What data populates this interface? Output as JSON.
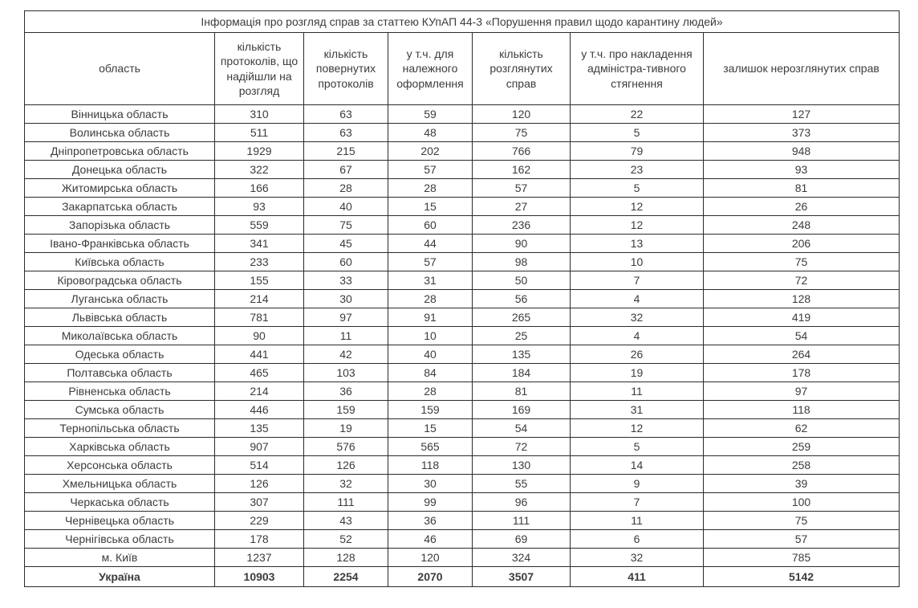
{
  "title": "Інформація про розгляд справ за статтею КУпАП 44-3 «Порушення правил щодо карантину людей»",
  "table": {
    "columns": [
      "область",
      "кількість протоколів, що надійшли на розгляд",
      "кількість повернутих протоколів",
      "у т.ч. для належного оформлення",
      "кількість розглянутих справ",
      "у т.ч. про накладення адміністра-тивного стягнення",
      "залишок нерозглянутих справ"
    ],
    "rows": [
      [
        "Вінницька область",
        310,
        63,
        59,
        120,
        22,
        127
      ],
      [
        "Волинська область",
        511,
        63,
        48,
        75,
        5,
        373
      ],
      [
        "Дніпропетровська область",
        1929,
        215,
        202,
        766,
        79,
        948
      ],
      [
        "Донецька область",
        322,
        67,
        57,
        162,
        23,
        93
      ],
      [
        "Житомирська область",
        166,
        28,
        28,
        57,
        5,
        81
      ],
      [
        "Закарпатська область",
        93,
        40,
        15,
        27,
        12,
        26
      ],
      [
        "Запорізька область",
        559,
        75,
        60,
        236,
        12,
        248
      ],
      [
        "Івано-Франківська область",
        341,
        45,
        44,
        90,
        13,
        206
      ],
      [
        "Київська область",
        233,
        60,
        57,
        98,
        10,
        75
      ],
      [
        "Кіровоградська область",
        155,
        33,
        31,
        50,
        7,
        72
      ],
      [
        "Луганська область",
        214,
        30,
        28,
        56,
        4,
        128
      ],
      [
        "Львівська область",
        781,
        97,
        91,
        265,
        32,
        419
      ],
      [
        "Миколаївська область",
        90,
        11,
        10,
        25,
        4,
        54
      ],
      [
        "Одеська область",
        441,
        42,
        40,
        135,
        26,
        264
      ],
      [
        "Полтавська область",
        465,
        103,
        84,
        184,
        19,
        178
      ],
      [
        "Рівненська область",
        214,
        36,
        28,
        81,
        11,
        97
      ],
      [
        "Сумська область",
        446,
        159,
        159,
        169,
        31,
        118
      ],
      [
        "Тернопільська область",
        135,
        19,
        15,
        54,
        12,
        62
      ],
      [
        "Харківська область",
        907,
        576,
        565,
        72,
        5,
        259
      ],
      [
        "Херсонська область",
        514,
        126,
        118,
        130,
        14,
        258
      ],
      [
        "Хмельницька область",
        126,
        32,
        30,
        55,
        9,
        39
      ],
      [
        "Черкаська область",
        307,
        111,
        99,
        96,
        7,
        100
      ],
      [
        "Чернівецька область",
        229,
        43,
        36,
        111,
        11,
        75
      ],
      [
        "Чернігівська область",
        178,
        52,
        46,
        69,
        6,
        57
      ],
      [
        "м. Київ",
        1237,
        128,
        120,
        324,
        32,
        785
      ]
    ],
    "total": [
      "Україна",
      10903,
      2254,
      2070,
      3507,
      411,
      5142
    ]
  }
}
